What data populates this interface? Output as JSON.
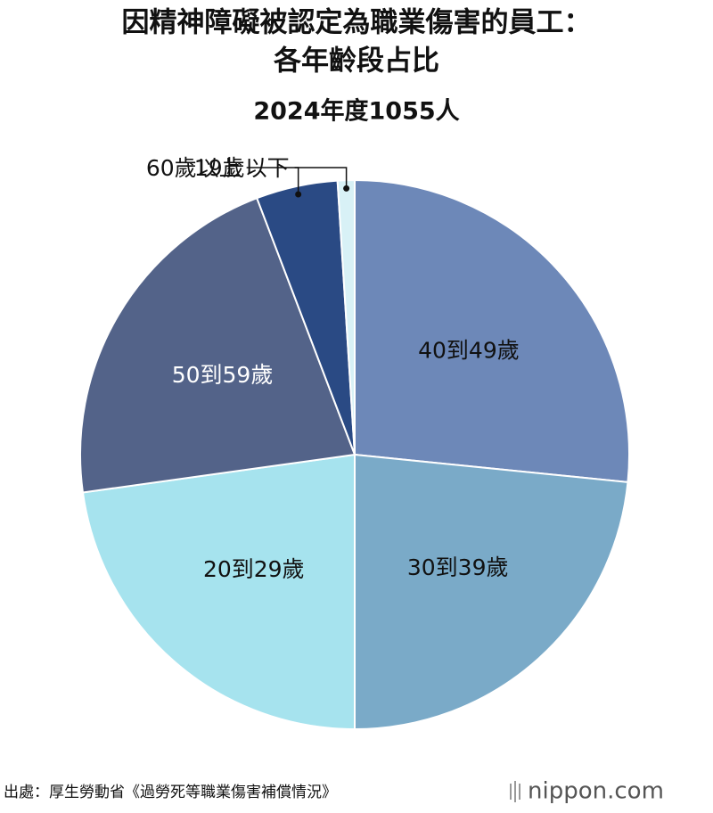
{
  "chart_data": {
    "type": "pie",
    "title": [
      "因精神障礙被認定為職業傷害的員工：",
      "各年齡段占比"
    ],
    "subtitle": "2024年度1055人",
    "categories": [
      "40到49歲",
      "30到39歲",
      "20到29歲",
      "50到59歲",
      "60歲以上",
      "19歲以下"
    ],
    "values": [
      26.6,
      23.4,
      22.8,
      21.4,
      4.8,
      1.0
    ],
    "colors": [
      "#6d88b8",
      "#7aaac8",
      "#a6e3ee",
      "#536389",
      "#2a4a84",
      "#d8f1f6"
    ],
    "source": "出處：厚生勞動省《過勞死等職業傷害補償情況》",
    "logo": "nippon.com"
  }
}
